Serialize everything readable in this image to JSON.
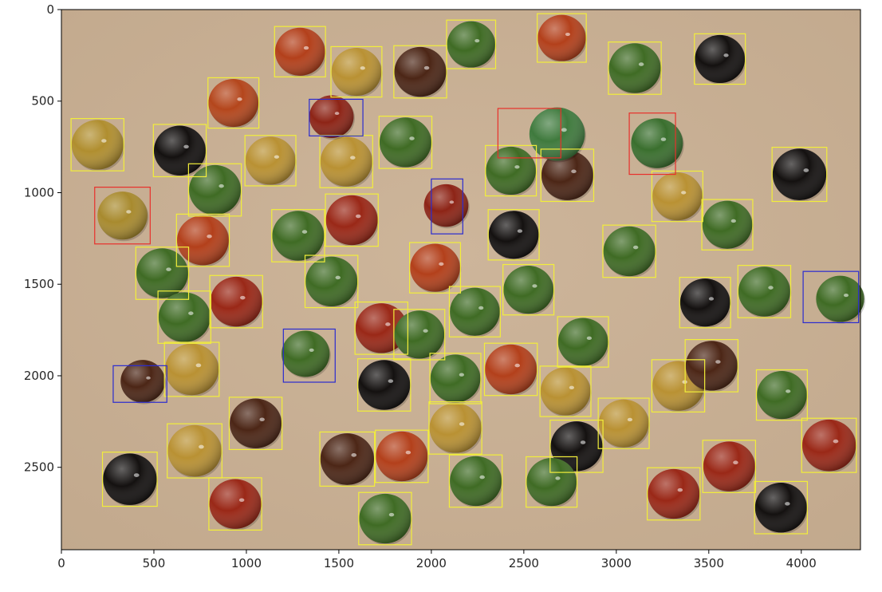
{
  "image": {
    "background_color": "#c2a98d",
    "box_colors": {
      "ok": "#f2ee3a",
      "misshapen": "#e8302b",
      "broken": "#2a2bd0"
    }
  },
  "axes": {
    "x_ticks": [
      "0",
      "500",
      "1000",
      "1500",
      "2000",
      "2500",
      "3000",
      "3500",
      "4000"
    ],
    "y_ticks": [
      "0",
      "500",
      "1000",
      "1500",
      "2000",
      "2500"
    ]
  },
  "chart_data": {
    "type": "scatter",
    "title": "",
    "xlabel": "",
    "ylabel": "",
    "xlim": [
      0,
      4320
    ],
    "ylim": [
      2950,
      0
    ],
    "x_ticks": [
      0,
      500,
      1000,
      1500,
      2000,
      2500,
      3000,
      3500,
      4000
    ],
    "y_ticks": [
      0,
      500,
      1000,
      1500,
      2000,
      2500
    ],
    "candies": [
      {
        "x": 195,
        "y": 738,
        "r": 140,
        "color": "#b08e2f",
        "box": "ok"
      },
      {
        "x": 640,
        "y": 770,
        "r": 140,
        "color": "#141110",
        "box": "ok"
      },
      {
        "x": 930,
        "y": 510,
        "r": 135,
        "color": "#b4461c",
        "box": "ok"
      },
      {
        "x": 1290,
        "y": 230,
        "r": 135,
        "color": "#b3401b",
        "box": "ok"
      },
      {
        "x": 1595,
        "y": 340,
        "r": 135,
        "color": "#b99133",
        "box": "ok"
      },
      {
        "x": 1940,
        "y": 340,
        "r": 140,
        "color": "#4c2616",
        "box": "ok"
      },
      {
        "x": 2215,
        "y": 190,
        "r": 130,
        "color": "#3f6b24",
        "box": "ok"
      },
      {
        "x": 2705,
        "y": 155,
        "r": 130,
        "color": "#b3401b",
        "box": "ok"
      },
      {
        "x": 3100,
        "y": 320,
        "r": 140,
        "color": "#3f6b24",
        "box": "ok"
      },
      {
        "x": 3560,
        "y": 270,
        "r": 135,
        "color": "#141110",
        "box": "ok"
      },
      {
        "x": 1130,
        "y": 825,
        "r": 135,
        "color": "#b99133",
        "box": "ok"
      },
      {
        "x": 1540,
        "y": 830,
        "r": 140,
        "color": "#b99133",
        "box": "ok"
      },
      {
        "x": 1860,
        "y": 725,
        "r": 140,
        "color": "#3f6b24",
        "box": "ok"
      },
      {
        "x": 2430,
        "y": 880,
        "r": 135,
        "color": "#3f6b24",
        "box": "ok"
      },
      {
        "x": 2735,
        "y": 905,
        "r": 140,
        "color": "#4c2616",
        "box": "ok"
      },
      {
        "x": 3990,
        "y": 900,
        "r": 145,
        "color": "#141110",
        "box": "ok"
      },
      {
        "x": 830,
        "y": 985,
        "r": 140,
        "color": "#3f6b24",
        "box": "ok"
      },
      {
        "x": 1570,
        "y": 1150,
        "r": 140,
        "color": "#9a2817",
        "box": "ok"
      },
      {
        "x": 3330,
        "y": 1020,
        "r": 135,
        "color": "#b99133",
        "box": "ok"
      },
      {
        "x": 3600,
        "y": 1175,
        "r": 135,
        "color": "#3f6b24",
        "box": "ok"
      },
      {
        "x": 765,
        "y": 1260,
        "r": 140,
        "color": "#b3401b",
        "box": "ok"
      },
      {
        "x": 1280,
        "y": 1235,
        "r": 140,
        "color": "#3f6b24",
        "box": "ok"
      },
      {
        "x": 2445,
        "y": 1230,
        "r": 135,
        "color": "#141110",
        "box": "ok"
      },
      {
        "x": 3070,
        "y": 1320,
        "r": 140,
        "color": "#3f6b24",
        "box": "ok"
      },
      {
        "x": 545,
        "y": 1440,
        "r": 140,
        "color": "#3f6b24",
        "box": "ok"
      },
      {
        "x": 1460,
        "y": 1485,
        "r": 140,
        "color": "#3f6b24",
        "box": "ok"
      },
      {
        "x": 2020,
        "y": 1410,
        "r": 135,
        "color": "#b3401b",
        "box": "ok"
      },
      {
        "x": 2525,
        "y": 1530,
        "r": 135,
        "color": "#3f6b24",
        "box": "ok"
      },
      {
        "x": 3800,
        "y": 1540,
        "r": 140,
        "color": "#3f6b24",
        "box": "ok"
      },
      {
        "x": 3480,
        "y": 1600,
        "r": 135,
        "color": "#141110",
        "box": "ok"
      },
      {
        "x": 945,
        "y": 1595,
        "r": 140,
        "color": "#9a2817",
        "box": "ok"
      },
      {
        "x": 665,
        "y": 1680,
        "r": 140,
        "color": "#3f6b24",
        "box": "ok"
      },
      {
        "x": 2235,
        "y": 1650,
        "r": 135,
        "color": "#3f6b24",
        "box": "ok"
      },
      {
        "x": 1730,
        "y": 1740,
        "r": 140,
        "color": "#9a2817",
        "box": "ok"
      },
      {
        "x": 1935,
        "y": 1775,
        "r": 135,
        "color": "#3f6b24",
        "box": "ok"
      },
      {
        "x": 2820,
        "y": 1815,
        "r": 135,
        "color": "#3f6b24",
        "box": "ok"
      },
      {
        "x": 705,
        "y": 1965,
        "r": 145,
        "color": "#b99133",
        "box": "ok"
      },
      {
        "x": 2130,
        "y": 2015,
        "r": 135,
        "color": "#3f6b24",
        "box": "ok"
      },
      {
        "x": 2430,
        "y": 1965,
        "r": 140,
        "color": "#b3401b",
        "box": "ok"
      },
      {
        "x": 3335,
        "y": 2055,
        "r": 140,
        "color": "#b99133",
        "box": "ok"
      },
      {
        "x": 3515,
        "y": 1945,
        "r": 140,
        "color": "#4c2616",
        "box": "ok"
      },
      {
        "x": 3895,
        "y": 2105,
        "r": 135,
        "color": "#3f6b24",
        "box": "ok"
      },
      {
        "x": 1745,
        "y": 2050,
        "r": 140,
        "color": "#141110",
        "box": "ok"
      },
      {
        "x": 2725,
        "y": 2085,
        "r": 135,
        "color": "#b99133",
        "box": "ok"
      },
      {
        "x": 1050,
        "y": 2260,
        "r": 140,
        "color": "#4c2616",
        "box": "ok"
      },
      {
        "x": 2130,
        "y": 2285,
        "r": 140,
        "color": "#b99133",
        "box": "ok"
      },
      {
        "x": 3040,
        "y": 2260,
        "r": 135,
        "color": "#b99133",
        "box": "ok"
      },
      {
        "x": 2785,
        "y": 2385,
        "r": 140,
        "color": "#141110",
        "box": "ok"
      },
      {
        "x": 720,
        "y": 2410,
        "r": 145,
        "color": "#b99133",
        "box": "ok"
      },
      {
        "x": 1545,
        "y": 2455,
        "r": 145,
        "color": "#4c2616",
        "box": "ok"
      },
      {
        "x": 1840,
        "y": 2440,
        "r": 140,
        "color": "#b3401b",
        "box": "ok"
      },
      {
        "x": 3610,
        "y": 2495,
        "r": 140,
        "color": "#9a2817",
        "box": "ok"
      },
      {
        "x": 4150,
        "y": 2380,
        "r": 145,
        "color": "#9a2817",
        "box": "ok"
      },
      {
        "x": 370,
        "y": 2565,
        "r": 145,
        "color": "#141110",
        "box": "ok"
      },
      {
        "x": 2240,
        "y": 2575,
        "r": 140,
        "color": "#3f6b24",
        "box": "ok"
      },
      {
        "x": 2650,
        "y": 2580,
        "r": 135,
        "color": "#3f6b24",
        "box": "ok"
      },
      {
        "x": 940,
        "y": 2700,
        "r": 140,
        "color": "#9a2817",
        "box": "ok"
      },
      {
        "x": 3310,
        "y": 2645,
        "r": 140,
        "color": "#9a2817",
        "box": "ok"
      },
      {
        "x": 3890,
        "y": 2720,
        "r": 140,
        "color": "#141110",
        "box": "ok"
      },
      {
        "x": 1750,
        "y": 2780,
        "r": 140,
        "color": "#3f6b24",
        "box": "ok"
      },
      {
        "x": 2680,
        "y": 680,
        "r": 150,
        "color": "#3f7a3d",
        "box": "misshapen",
        "box_rect": [
          2360,
          540,
          2700,
          810
        ]
      },
      {
        "x": 3220,
        "y": 730,
        "r": 140,
        "color": "#3a6f2e",
        "box": "misshapen",
        "box_rect": [
          3070,
          565,
          3320,
          900
        ]
      },
      {
        "x": 330,
        "y": 1125,
        "r": 135,
        "color": "#a88a2e",
        "box": "misshapen",
        "box_rect": [
          180,
          970,
          480,
          1280
        ]
      },
      {
        "x": 1460,
        "y": 585,
        "r": 120,
        "color": "#8d2416",
        "box": "broken",
        "box_rect": [
          1340,
          490,
          1630,
          690
        ]
      },
      {
        "x": 2080,
        "y": 1070,
        "r": 120,
        "color": "#8d2416",
        "box": "broken",
        "box_rect": [
          2000,
          925,
          2170,
          1225
        ]
      },
      {
        "x": 1320,
        "y": 1880,
        "r": 130,
        "color": "#3f6b24",
        "box": "broken",
        "box_rect": [
          1200,
          1745,
          1480,
          2035
        ]
      },
      {
        "x": 440,
        "y": 2030,
        "r": 120,
        "color": "#4c2616",
        "box": "broken",
        "box_rect": [
          280,
          1945,
          570,
          2145
        ]
      },
      {
        "x": 4210,
        "y": 1580,
        "r": 130,
        "color": "#3f6b24",
        "box": "broken",
        "box_rect": [
          4010,
          1430,
          4310,
          1710
        ]
      }
    ]
  }
}
